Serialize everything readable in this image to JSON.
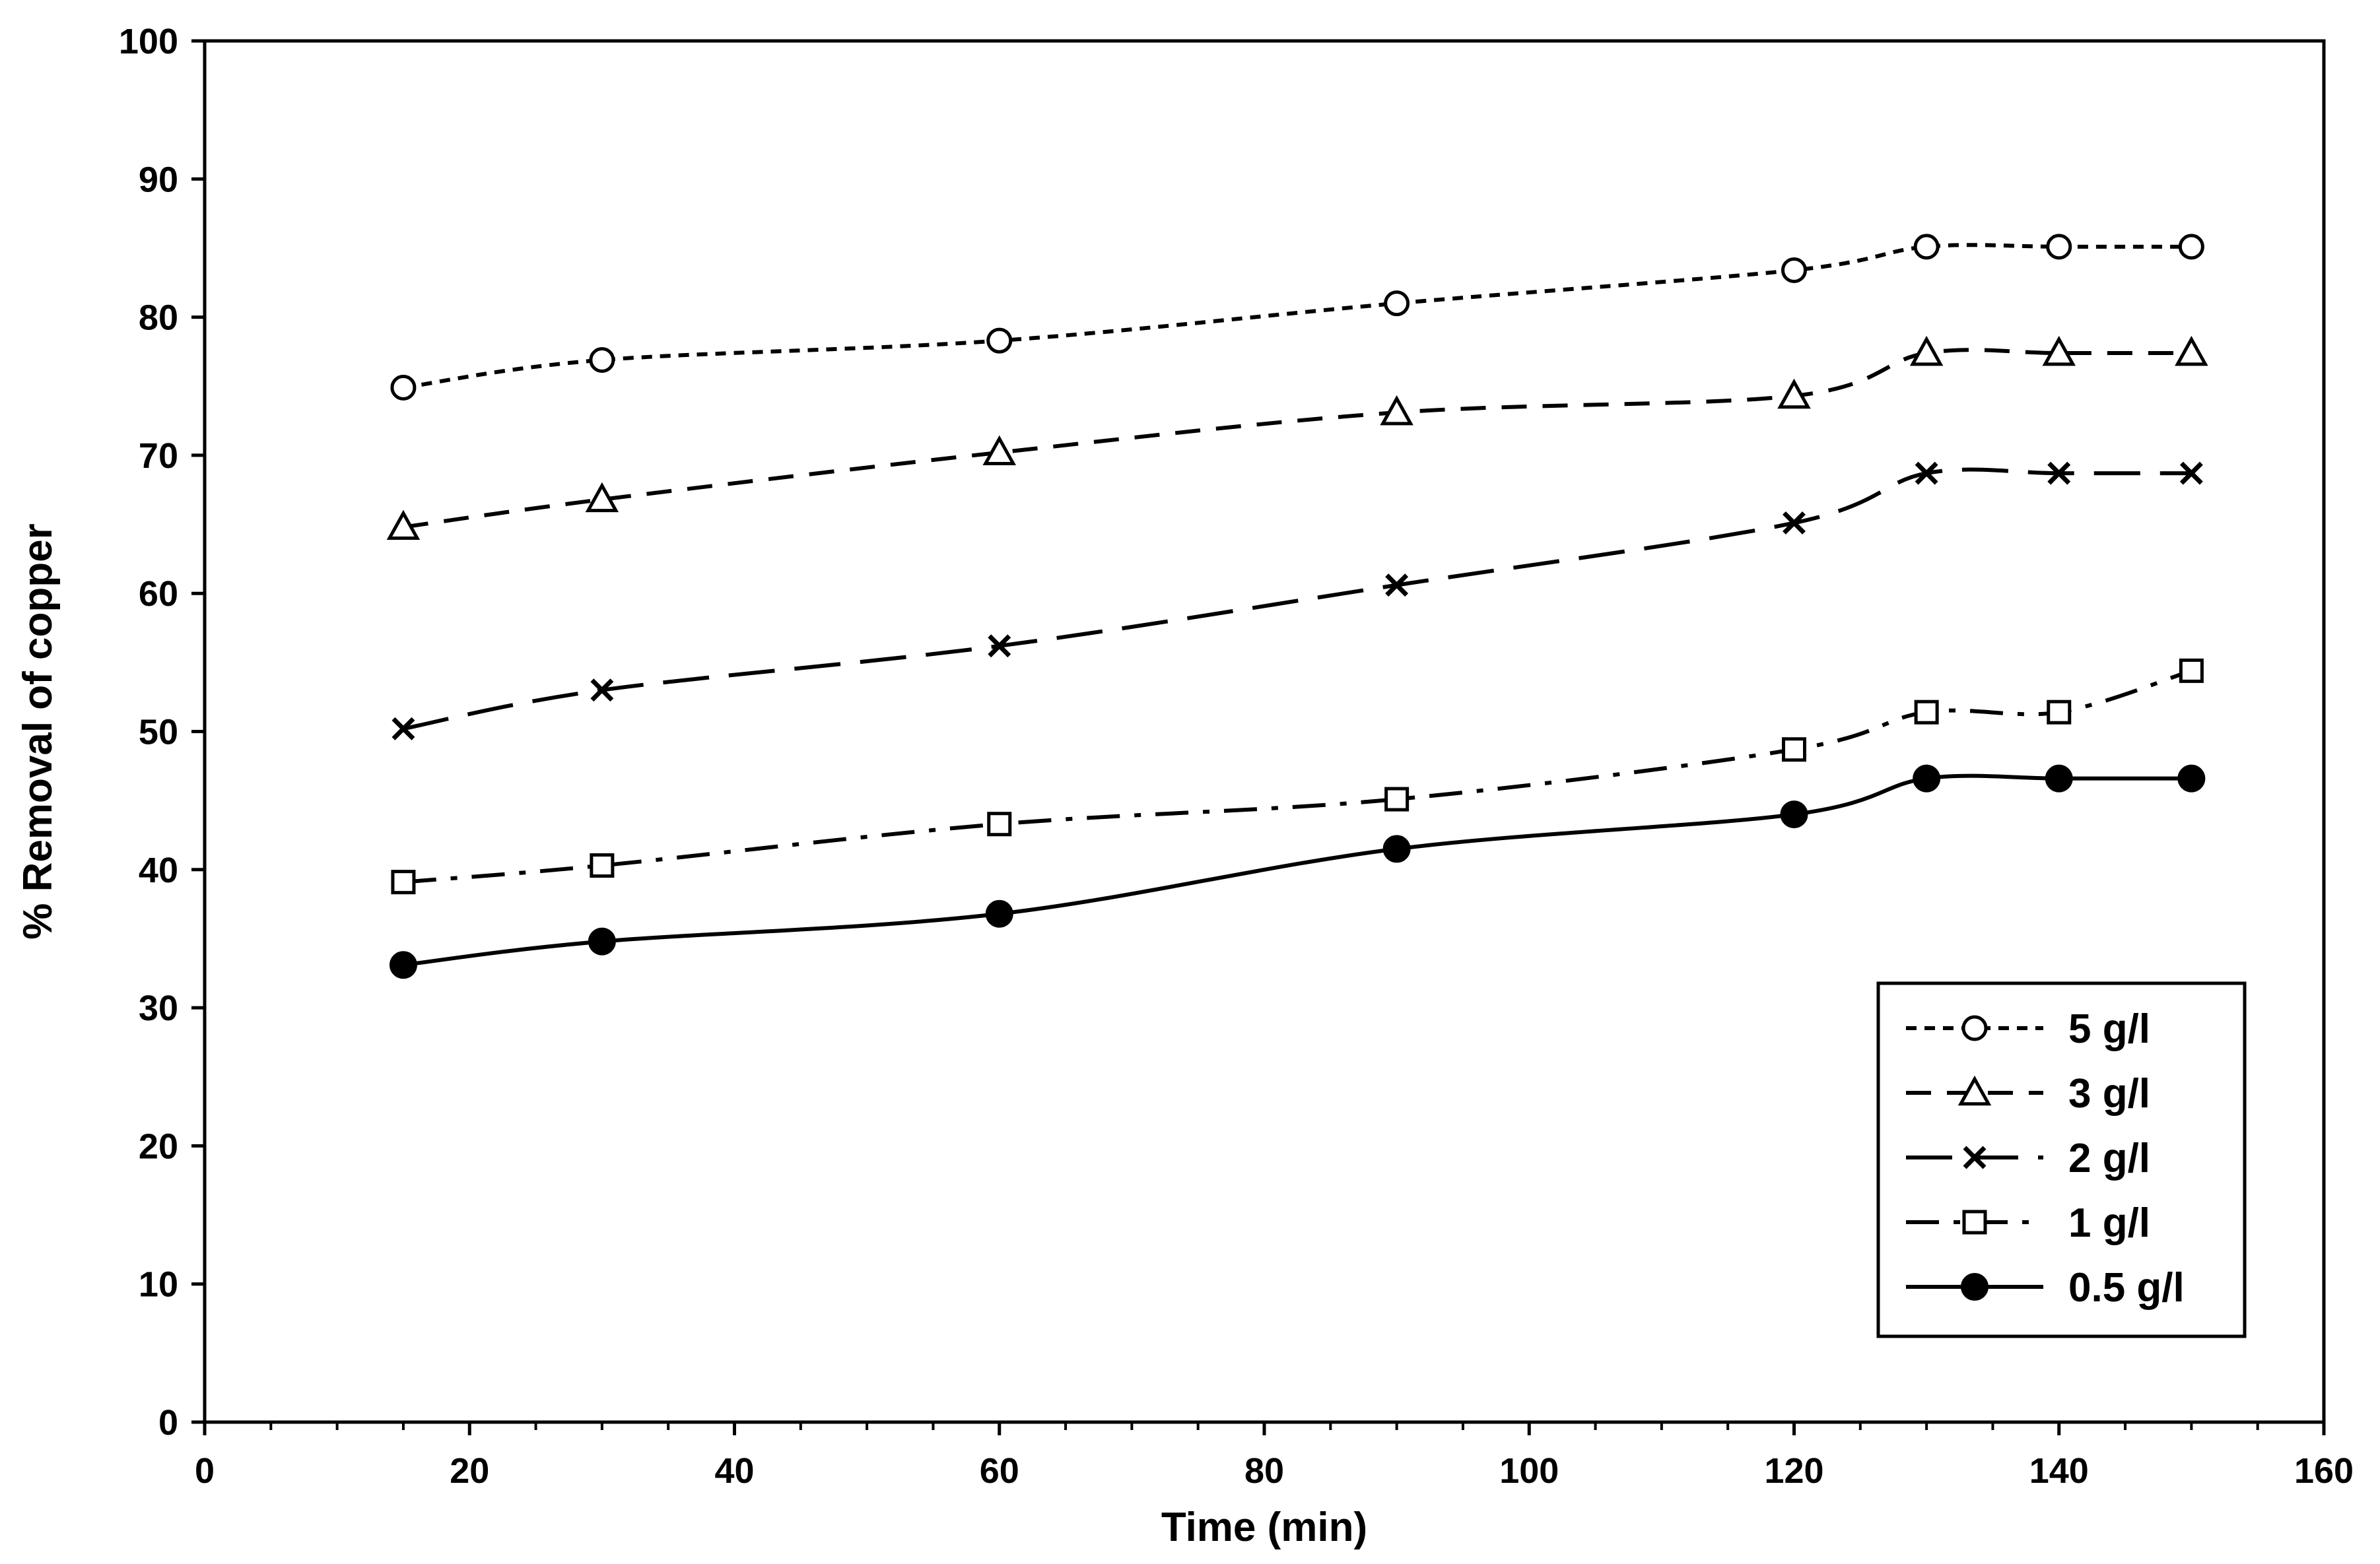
{
  "chart_data": {
    "type": "line",
    "title": "",
    "xlabel": "Time (min)",
    "ylabel": "% Removal of copper",
    "xlim": [
      0,
      160
    ],
    "ylim": [
      0,
      100
    ],
    "xticks": [
      0,
      20,
      40,
      60,
      80,
      100,
      120,
      140,
      160
    ],
    "yticks": [
      0,
      10,
      20,
      30,
      40,
      50,
      60,
      70,
      80,
      90,
      100
    ],
    "x": [
      15,
      30,
      60,
      90,
      120,
      130,
      140,
      150
    ],
    "grid": false,
    "legend_position": "bottom-right",
    "series": [
      {
        "name": "5 g/l",
        "marker": "open-circle",
        "dash": "short-dash",
        "values": [
          74.9,
          76.9,
          78.3,
          81.0,
          83.4,
          85.1,
          85.1,
          85.1
        ]
      },
      {
        "name": "3 g/l",
        "marker": "open-triangle",
        "dash": "dash",
        "values": [
          64.8,
          66.8,
          70.2,
          73.1,
          74.3,
          77.4,
          77.4,
          77.4
        ]
      },
      {
        "name": "2 g/l",
        "marker": "x",
        "dash": "long-dash",
        "values": [
          50.2,
          53.0,
          56.2,
          60.6,
          65.1,
          68.7,
          68.7,
          68.7
        ]
      },
      {
        "name": "1 g/l",
        "marker": "open-square",
        "dash": "dash-dot",
        "values": [
          39.1,
          40.3,
          43.3,
          45.1,
          48.7,
          51.4,
          51.4,
          54.4
        ]
      },
      {
        "name": "0.5 g/l",
        "marker": "filled-circle",
        "dash": "solid",
        "values": [
          33.1,
          34.8,
          36.8,
          41.5,
          44.0,
          46.6,
          46.6,
          46.6
        ]
      }
    ]
  }
}
